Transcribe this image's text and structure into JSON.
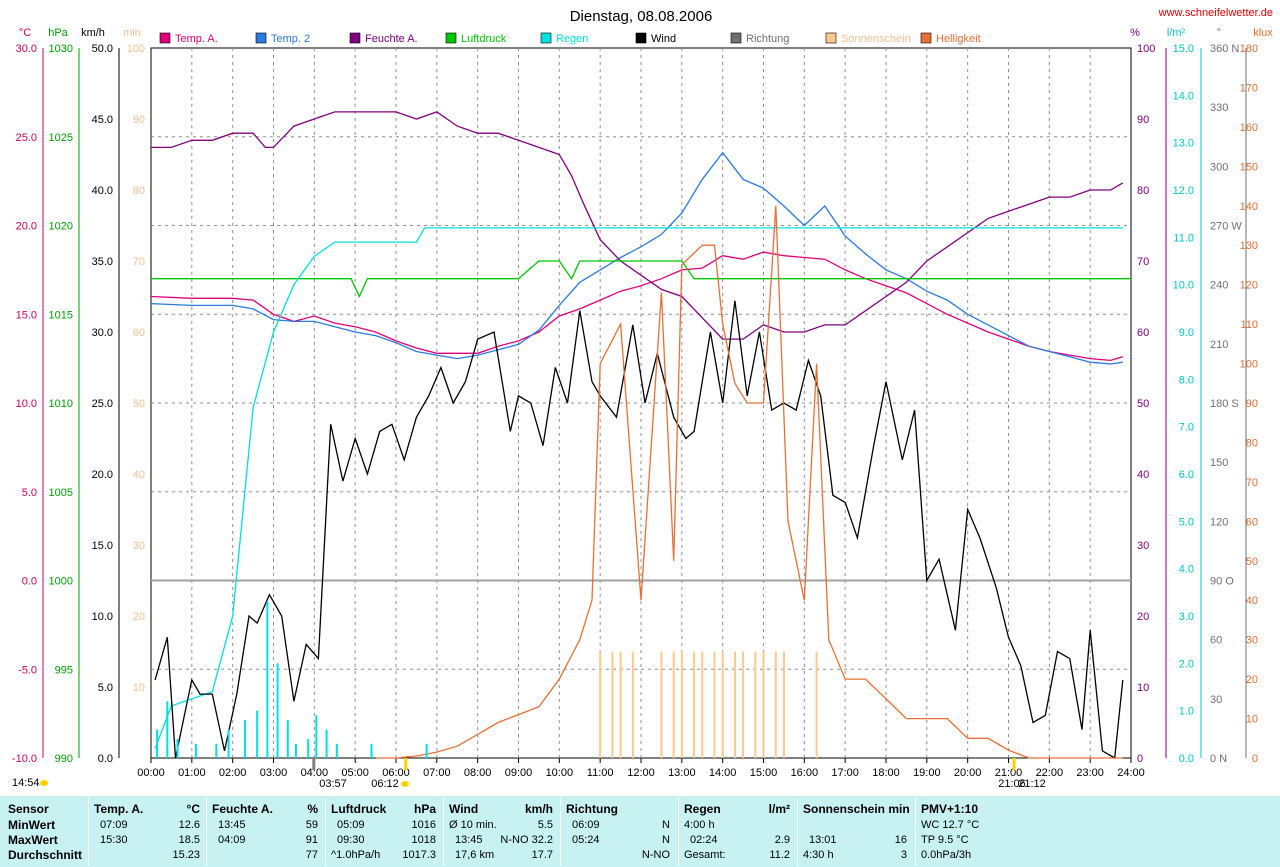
{
  "header": {
    "title": "Dienstag, 08.08.2006",
    "site": "www.schneifelwetter.de"
  },
  "units": {
    "left": [
      "°C",
      "hPa",
      "km/h",
      "min"
    ],
    "right": [
      "%",
      "l/m²",
      "°",
      "klux"
    ]
  },
  "axes": {
    "temp": [
      "30.0",
      "25.0",
      "20.0",
      "15.0",
      "10.0",
      "5.0",
      "0.0",
      "-5.0",
      "-10.0"
    ],
    "hpa": [
      "1030",
      "1025",
      "1020",
      "1015",
      "1010",
      "1005",
      "1000",
      "995",
      "990"
    ],
    "kmh": [
      "50.0",
      "45.0",
      "40.0",
      "35.0",
      "30.0",
      "25.0",
      "20.0",
      "15.0",
      "10.0",
      "5.0",
      "0.0"
    ],
    "min": [
      "100",
      "90",
      "80",
      "70",
      "60",
      "50",
      "40",
      "30",
      "20",
      "10"
    ],
    "pct": [
      "100",
      "90",
      "80",
      "70",
      "60",
      "50",
      "40",
      "30",
      "20",
      "10",
      "0"
    ],
    "rain": [
      "15.0",
      "14.0",
      "13.0",
      "12.0",
      "11.0",
      "10.0",
      "9.0",
      "8.0",
      "7.0",
      "6.0",
      "5.0",
      "4.0",
      "3.0",
      "2.0",
      "1.0",
      "0.0"
    ],
    "dir": [
      "360 N",
      "330",
      "300",
      "270 W",
      "240",
      "210",
      "180 S",
      "150",
      "120",
      "90 O",
      "60",
      "30",
      "0 N"
    ],
    "klux": [
      "180",
      "170",
      "160",
      "150",
      "140",
      "130",
      "120",
      "110",
      "100",
      "90",
      "80",
      "70",
      "60",
      "50",
      "40",
      "30",
      "20",
      "10",
      "0"
    ],
    "hours": [
      "00:00",
      "01:00",
      "02:00",
      "03:00",
      "04:00",
      "05:00",
      "06:00",
      "07:00",
      "08:00",
      "09:00",
      "10:00",
      "11:00",
      "12:00",
      "13:00",
      "14:00",
      "15:00",
      "16:00",
      "17:00",
      "18:00",
      "19:00",
      "20:00",
      "21:00",
      "22:00",
      "23:00",
      "24:00"
    ]
  },
  "legend": [
    {
      "label": "Temp. A.",
      "color": "#e0007a"
    },
    {
      "label": "Temp. 2",
      "color": "#2a7adf"
    },
    {
      "label": "Feuchte A.",
      "color": "#800080"
    },
    {
      "label": "Luftdruck",
      "color": "#00c800"
    },
    {
      "label": "Regen",
      "color": "#00e0e0"
    },
    {
      "label": "Wind",
      "color": "#000000"
    },
    {
      "label": "Richtung",
      "color": "#707070"
    },
    {
      "label": "Sonnenschein",
      "color": "#ffc890"
    },
    {
      "label": "Helligkeit",
      "color": "#e87038"
    }
  ],
  "markers": {
    "left_time": "14:54",
    "moon_set": "03:57",
    "sunrise": "06:12",
    "sunset": "21:06",
    "moon_rise": "21:12"
  },
  "chart_data": {
    "type": "line",
    "title": "Dienstag, 08.08.2006",
    "x_range": [
      "00:00",
      "24:00"
    ],
    "series": [
      {
        "name": "Temp. A.",
        "unit": "°C",
        "color": "#e0007a",
        "x": [
          0,
          1,
          2,
          2.5,
          3,
          3.5,
          4,
          4.5,
          5,
          5.5,
          6,
          6.5,
          7,
          7.5,
          8,
          8.5,
          9,
          9.5,
          10,
          10.5,
          11,
          11.5,
          12,
          12.5,
          13,
          13.5,
          14,
          14.5,
          15,
          15.5,
          16,
          16.5,
          17,
          17.5,
          18,
          18.5,
          19,
          19.5,
          20,
          20.5,
          21,
          21.5,
          22,
          22.5,
          23,
          23.5,
          23.8
        ],
        "values": [
          16.0,
          15.9,
          15.9,
          15.8,
          15.0,
          14.6,
          14.9,
          14.5,
          14.3,
          14.0,
          13.5,
          13.1,
          12.8,
          12.8,
          12.8,
          13.2,
          13.5,
          14.0,
          14.9,
          15.3,
          15.8,
          16.3,
          16.6,
          17.0,
          17.5,
          17.6,
          18.3,
          18.1,
          18.5,
          18.3,
          18.2,
          18.1,
          17.5,
          17.0,
          16.6,
          16.2,
          15.6,
          15.0,
          14.5,
          14.0,
          13.6,
          13.2,
          12.9,
          12.7,
          12.5,
          12.4,
          12.6
        ]
      },
      {
        "name": "Temp. 2",
        "unit": "°C",
        "color": "#2a7adf",
        "x": [
          0,
          1,
          2,
          2.5,
          3,
          3.5,
          4,
          4.5,
          5,
          5.5,
          6,
          6.5,
          7,
          7.5,
          8,
          8.5,
          9,
          9.5,
          10,
          10.5,
          11,
          11.5,
          12,
          12.5,
          13,
          13.5,
          14,
          14.5,
          15,
          15.5,
          16,
          16.5,
          17,
          17.5,
          18,
          18.5,
          19,
          19.5,
          20,
          20.5,
          21,
          21.5,
          22,
          22.5,
          23,
          23.5,
          23.8
        ],
        "values": [
          15.6,
          15.5,
          15.5,
          15.3,
          14.7,
          14.6,
          14.6,
          14.3,
          14.0,
          13.8,
          13.4,
          12.9,
          12.7,
          12.5,
          12.7,
          13.0,
          13.3,
          14.1,
          15.5,
          16.8,
          17.5,
          18.2,
          18.8,
          19.5,
          20.7,
          22.6,
          24.1,
          22.6,
          22.1,
          21.1,
          20.0,
          21.1,
          19.4,
          18.4,
          17.5,
          17.0,
          16.3,
          15.8,
          15.0,
          14.4,
          13.8,
          13.2,
          12.9,
          12.6,
          12.3,
          12.2,
          12.3
        ]
      },
      {
        "name": "Feuchte A.",
        "unit": "%",
        "color": "#800080",
        "x": [
          0,
          0.5,
          1,
          1.5,
          2,
          2.5,
          2.8,
          3,
          3.5,
          4,
          4.5,
          5,
          5.5,
          6,
          6.5,
          7,
          7.5,
          8,
          8.5,
          9,
          9.5,
          10,
          10.3,
          10.6,
          11,
          11.5,
          12,
          12.5,
          13,
          13.5,
          14,
          14.5,
          15,
          15.5,
          16,
          16.5,
          17,
          17.5,
          18,
          18.5,
          19,
          19.5,
          20,
          20.5,
          21,
          21.5,
          22,
          22.5,
          23,
          23.5,
          23.8
        ],
        "values": [
          86,
          86,
          87,
          87,
          88,
          88,
          86,
          86,
          89,
          90,
          91,
          91,
          91,
          91,
          90,
          91,
          89,
          88,
          88,
          87,
          86,
          85,
          82,
          78,
          73,
          70,
          68,
          66,
          65,
          62,
          59,
          59,
          61,
          60,
          60,
          61,
          61,
          63,
          65,
          67,
          70,
          72,
          74,
          76,
          77,
          78,
          79,
          79,
          80,
          80,
          81
        ]
      },
      {
        "name": "Luftdruck",
        "unit": "hPa",
        "color": "#00c800",
        "x": [
          0,
          4.9,
          5.1,
          5.3,
          6,
          9,
          9.5,
          10,
          10.3,
          10.5,
          11,
          12,
          12.5,
          13,
          13.3,
          13.5,
          14,
          24
        ],
        "values": [
          1017,
          1017,
          1016,
          1017,
          1017,
          1017,
          1018,
          1018,
          1017,
          1018,
          1018,
          1018,
          1018,
          1018,
          1017,
          1017,
          1017,
          1017
        ]
      },
      {
        "name": "Regen",
        "unit": "l/m²",
        "color": "#00e0e0",
        "x": [
          0.1,
          0.5,
          1.5,
          2,
          2.5,
          3,
          3.5,
          4,
          4.5,
          6.5,
          6.7,
          23.8
        ],
        "values": [
          0.2,
          1.1,
          1.4,
          3.0,
          7.4,
          9.0,
          10.0,
          10.6,
          10.9,
          10.9,
          11.2,
          11.2
        ]
      },
      {
        "name": "Wind",
        "unit": "km/h",
        "color": "#000000",
        "x": [
          0.1,
          0.4,
          0.6,
          1.0,
          1.2,
          1.5,
          1.8,
          2.1,
          2.4,
          2.6,
          2.9,
          3.2,
          3.5,
          3.8,
          4.1,
          4.4,
          4.7,
          5.0,
          5.3,
          5.6,
          5.9,
          6.2,
          6.5,
          6.8,
          7.1,
          7.4,
          7.7,
          8.0,
          8.4,
          8.8,
          9.0,
          9.3,
          9.6,
          9.9,
          10.2,
          10.5,
          10.8,
          11.0,
          11.4,
          11.8,
          12.1,
          12.4,
          12.8,
          13.1,
          13.3,
          13.7,
          14.0,
          14.3,
          14.6,
          14.9,
          15.2,
          15.5,
          15.8,
          16.1,
          16.4,
          16.7,
          17.0,
          17.3,
          17.7,
          18.0,
          18.4,
          18.7,
          19.0,
          19.3,
          19.7,
          20.0,
          20.3,
          20.7,
          21.0,
          21.3,
          21.6,
          21.9,
          22.2,
          22.5,
          22.8,
          23.0,
          23.3,
          23.6,
          23.8
        ],
        "values": [
          5.5,
          8.5,
          0.0,
          5.5,
          4.5,
          4.5,
          0.5,
          4.5,
          10.0,
          9.5,
          11.5,
          10.0,
          4.0,
          8.0,
          7.0,
          23.5,
          19.5,
          22.5,
          20.0,
          23.0,
          23.5,
          21.0,
          24.0,
          25.5,
          27.5,
          25.0,
          26.5,
          29.5,
          30.0,
          23.0,
          25.5,
          25.0,
          22.0,
          27.5,
          25.0,
          31.5,
          26.5,
          25.5,
          24.0,
          30.5,
          25.0,
          28.5,
          24.0,
          22.5,
          23.0,
          30.0,
          25.0,
          32.2,
          25.5,
          30.0,
          24.5,
          25.0,
          24.5,
          28.0,
          25.5,
          18.5,
          18.0,
          15.5,
          22.0,
          26.5,
          21.0,
          24.5,
          12.5,
          14.0,
          9.0,
          17.5,
          15.5,
          12.0,
          8.5,
          6.5,
          2.5,
          3.0,
          7.5,
          7.0,
          2.0,
          9.0,
          0.5,
          0.0,
          5.5
        ]
      },
      {
        "name": "Helligkeit",
        "unit": "klux",
        "color": "#e87038",
        "x": [
          5.5,
          6,
          6.5,
          7,
          7.5,
          8,
          8.5,
          9,
          9.5,
          10,
          10.5,
          10.8,
          11,
          11.5,
          12,
          12.5,
          12.8,
          13,
          13.5,
          13.8,
          14,
          14.3,
          14.6,
          15,
          15.3,
          15.6,
          16,
          16.3,
          16.6,
          17,
          17.5,
          18,
          18.5,
          19,
          19.5,
          20,
          20.5,
          21,
          21.5,
          22,
          22.5,
          23,
          23.5,
          23.8
        ],
        "values": [
          0,
          0,
          0.5,
          1.5,
          3,
          6,
          9,
          11,
          13,
          20,
          30,
          40,
          100,
          110,
          40,
          118,
          50,
          125,
          130,
          130,
          110,
          95,
          90,
          90,
          140,
          60,
          40,
          100,
          30,
          20,
          20,
          15,
          10,
          10,
          10,
          5,
          5,
          2,
          0,
          0,
          0,
          0,
          0,
          0
        ]
      },
      {
        "name": "Sonnenschein",
        "unit": "min",
        "color": "#ffc890",
        "x": [
          11.0,
          11.3,
          11.5,
          11.8,
          12.5,
          12.8,
          13.0,
          13.3,
          13.5,
          13.8,
          14.0,
          14.3,
          14.5,
          14.8,
          15.0,
          15.3,
          15.5,
          16.3
        ],
        "values": [
          15,
          15,
          15,
          15,
          15,
          15,
          15,
          15,
          15,
          15,
          15,
          15,
          15,
          15,
          15,
          15,
          15,
          15
        ]
      }
    ],
    "grid": true
  },
  "stats": {
    "headers": {
      "sensor": "Sensor",
      "temp": "Temp. A.",
      "temp_unit": "°C",
      "feuchte": "Feuchte A.",
      "feuchte_unit": "%",
      "luftdruck": "Luftdruck",
      "luftdruck_unit": "hPa",
      "wind": "Wind",
      "wind_unit": "km/h",
      "richtung": "Richtung",
      "regen": "Regen",
      "regen_unit": "l/m²",
      "sonne": "Sonnenschein min",
      "pmv": "PMV+1:10"
    },
    "rows": [
      "MinWert",
      "MaxWert",
      "Durchschnitt"
    ],
    "temp": [
      [
        "07:09",
        "12.6"
      ],
      [
        "15:30",
        "18.5"
      ],
      [
        "",
        "15.23"
      ]
    ],
    "feuchte": [
      [
        "13:45",
        "59"
      ],
      [
        "04:09",
        "91"
      ],
      [
        "",
        "77"
      ]
    ],
    "luftdruck": [
      [
        "05:09",
        "1016"
      ],
      [
        "09:30",
        "1018"
      ],
      [
        "^1.0hPa/h",
        "1017.3"
      ]
    ],
    "wind": [
      [
        "Ø 10 min.",
        "5.5"
      ],
      [
        "13:45",
        "N-NO 32.2"
      ],
      [
        "17,6 km",
        "17.7"
      ]
    ],
    "richtung": [
      [
        "06:09",
        "N"
      ],
      [
        "05:24",
        "N"
      ],
      [
        "",
        "N-NO"
      ]
    ],
    "regen": [
      [
        "4:00 h",
        ""
      ],
      [
        "02:24",
        "2.9"
      ],
      [
        "Gesamt:",
        "11.2"
      ]
    ],
    "sonne": [
      [
        "",
        ""
      ],
      [
        "13:01",
        "16"
      ],
      [
        "4:30 h",
        "3"
      ]
    ],
    "pmv": [
      "WC 12.7 °C",
      "TP 9.5 °C",
      "0.0hPa/3h"
    ]
  }
}
